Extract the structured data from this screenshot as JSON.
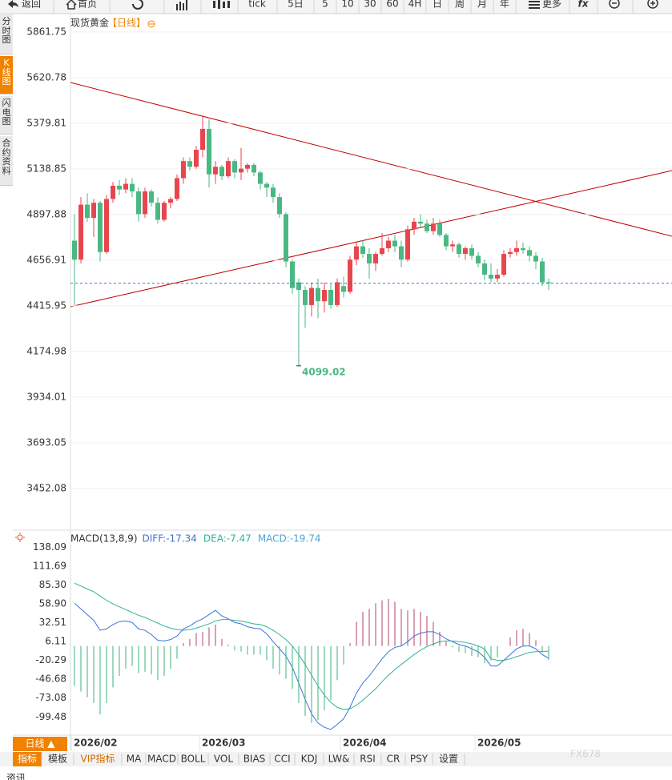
{
  "toolbar": {
    "back": "返回",
    "home": "首页",
    "tick": "tick",
    "periods": [
      "5日",
      "5",
      "10",
      "30",
      "60",
      "4H",
      "日",
      "周",
      "月",
      "年"
    ],
    "more": "更多"
  },
  "sidebar": [
    "分时图",
    "K线图",
    "闪电图",
    "合约资料"
  ],
  "chart_data": [
    {
      "type": "candlestick",
      "title": "现货黄金",
      "subtitle": "【日线】",
      "annotation": "4099.02",
      "categories": [
        "2026/02",
        null,
        null,
        null,
        null,
        null,
        null,
        null,
        null,
        null,
        null,
        null,
        null,
        null,
        null,
        null,
        null,
        null,
        null,
        null,
        "2026/03",
        null,
        null,
        null,
        null,
        null,
        null,
        null,
        null,
        null,
        null,
        null,
        null,
        null,
        null,
        null,
        null,
        null,
        null,
        null,
        null,
        null,
        "2026/04",
        null,
        null,
        null,
        null,
        null,
        null,
        null,
        null,
        null,
        null,
        null,
        null,
        null,
        null,
        null,
        null,
        null,
        null,
        null,
        null,
        "2026/05",
        null,
        null,
        null,
        null,
        null,
        null,
        null,
        null,
        null,
        null,
        null
      ],
      "open": [
        4760,
        4660,
        4950,
        4880,
        4960,
        4700,
        4980,
        5050,
        5030,
        5060,
        5020,
        4900,
        5020,
        4960,
        4870,
        4960,
        4980,
        5090,
        5180,
        5150,
        5240,
        5350,
        5110,
        5150,
        5100,
        5180,
        5120,
        5140,
        5160,
        5120,
        5060,
        5040,
        4990,
        4900,
        4650,
        4540,
        4500,
        4420,
        4510,
        4440,
        4500,
        4420,
        4520,
        4490,
        4660,
        4730,
        4690,
        4640,
        4690,
        4720,
        4760,
        4730,
        4660,
        4820,
        4860,
        4850,
        4810,
        4850,
        4790,
        4730,
        4740,
        4690,
        4720,
        4680,
        4640,
        4580,
        4560,
        4580,
        4690,
        4700,
        4720,
        4710,
        4680,
        4650,
        4540
      ],
      "high": [
        4900,
        4990,
        5010,
        4980,
        4970,
        5000,
        5070,
        5080,
        5090,
        5090,
        5040,
        5040,
        5030,
        4990,
        4970,
        4990,
        5110,
        5200,
        5200,
        5260,
        5420,
        5400,
        5180,
        5160,
        5200,
        5190,
        5250,
        5170,
        5170,
        5130,
        5070,
        5060,
        5010,
        4910,
        4660,
        4560,
        4520,
        4540,
        4560,
        4540,
        4530,
        4560,
        4570,
        4680,
        4750,
        4760,
        4720,
        4700,
        4800,
        4780,
        4790,
        4760,
        4840,
        4880,
        4900,
        4870,
        4880,
        4870,
        4800,
        4760,
        4750,
        4730,
        4740,
        4700,
        4660,
        4640,
        4610,
        4710,
        4720,
        4760,
        4750,
        4730,
        4700,
        4670,
        4560
      ],
      "low": [
        4420,
        4640,
        4860,
        4780,
        4650,
        4690,
        4960,
        5000,
        5010,
        4990,
        4860,
        4880,
        4940,
        4850,
        4860,
        4930,
        4970,
        5060,
        5130,
        5140,
        5200,
        5040,
        5060,
        5080,
        5090,
        5090,
        5080,
        5120,
        5100,
        5030,
        4990,
        4960,
        4880,
        4620,
        4480,
        4099.02,
        4300,
        4360,
        4350,
        4380,
        4400,
        4410,
        4460,
        4480,
        4630,
        4670,
        4560,
        4600,
        4680,
        4700,
        4700,
        4620,
        4650,
        4790,
        4830,
        4800,
        4790,
        4780,
        4710,
        4700,
        4670,
        4660,
        4660,
        4620,
        4550,
        4540,
        4540,
        4570,
        4670,
        4680,
        4690,
        4650,
        4610,
        4520,
        4500
      ],
      "close": [
        4660,
        4950,
        4880,
        4960,
        4700,
        4980,
        5050,
        5030,
        5060,
        5020,
        4900,
        5020,
        4960,
        4870,
        4960,
        4980,
        5090,
        5180,
        5150,
        5240,
        5350,
        5110,
        5150,
        5100,
        5180,
        5120,
        5140,
        5160,
        5120,
        5060,
        5040,
        4990,
        4900,
        4650,
        4510,
        4500,
        4420,
        4510,
        4440,
        4500,
        4420,
        4540,
        4490,
        4660,
        4730,
        4690,
        4640,
        4690,
        4720,
        4760,
        4730,
        4660,
        4820,
        4860,
        4850,
        4810,
        4850,
        4790,
        4730,
        4740,
        4690,
        4720,
        4680,
        4640,
        4580,
        4560,
        4580,
        4690,
        4700,
        4720,
        4710,
        4680,
        4650,
        4540,
        4535
      ],
      "up_color": "#e8464e",
      "down_color": "#49b883",
      "ylim": [
        3240,
        5946
      ],
      "yticks": [
        5861.75,
        5620.78,
        5379.81,
        5138.85,
        4897.88,
        4656.91,
        4415.95,
        4174.98,
        3934.01,
        3693.05,
        3452.08
      ],
      "grid": true
    },
    {
      "type": "macd",
      "title": "MACD(13,8,9)",
      "series": [
        {
          "label": "DIFF:-17.34",
          "kind": "line",
          "color": "#3b73d9",
          "values": [
            60,
            52,
            44,
            36,
            22,
            24,
            30,
            34,
            35,
            33,
            24,
            22,
            16,
            8,
            7,
            9,
            14,
            24,
            28,
            34,
            38,
            44,
            50,
            42,
            38,
            33,
            31,
            27,
            25,
            24,
            17,
            6,
            -4,
            -14,
            -30,
            -52,
            -75,
            -95,
            -108,
            -114,
            -117,
            -110,
            -102,
            -86,
            -66,
            -52,
            -42,
            -30,
            -18,
            -8,
            -2,
            0,
            6,
            14,
            18,
            20,
            20,
            16,
            10,
            6,
            2,
            0,
            -4,
            -8,
            -16,
            -28,
            -28,
            -20,
            -12,
            -4,
            0,
            0,
            -4,
            -12,
            -17.34
          ]
        },
        {
          "label": "DEA:-7.47",
          "kind": "line",
          "color": "#2fb39a",
          "values": [
            88,
            84,
            80,
            76,
            70,
            64,
            59,
            55,
            51,
            47,
            43,
            40,
            36,
            32,
            28,
            25,
            23,
            22,
            23,
            25,
            28,
            31,
            35,
            37,
            37,
            36,
            35,
            33,
            31,
            30,
            27,
            22,
            16,
            9,
            0,
            -12,
            -26,
            -41,
            -56,
            -69,
            -79,
            -86,
            -89,
            -88,
            -83,
            -76,
            -68,
            -60,
            -50,
            -41,
            -33,
            -26,
            -19,
            -12,
            -6,
            -1,
            3,
            6,
            7,
            7,
            6,
            5,
            3,
            0,
            -4,
            -18,
            -20,
            -20,
            -18,
            -15,
            -12,
            -9,
            -8,
            -7.5,
            -7.47
          ]
        },
        {
          "label": "MACD:-19.74",
          "kind": "bar",
          "color": "#4aa6d8",
          "up_color": "#b5426e",
          "down_color": "#3cb37a",
          "values": [
            -56,
            -64,
            -72,
            -80,
            -96,
            -80,
            -58,
            -42,
            -32,
            -28,
            -38,
            -36,
            -40,
            -48,
            -42,
            -32,
            -18,
            4,
            10,
            18,
            20,
            26,
            30,
            10,
            2,
            -6,
            -8,
            -12,
            -12,
            -12,
            -20,
            -32,
            -40,
            -46,
            -60,
            -80,
            -98,
            -108,
            -104,
            -90,
            -76,
            -48,
            -26,
            4,
            34,
            48,
            52,
            60,
            64,
            66,
            62,
            52,
            50,
            52,
            48,
            42,
            34,
            20,
            6,
            -2,
            -8,
            -10,
            -14,
            -16,
            -24,
            -20,
            -16,
            0,
            12,
            22,
            24,
            18,
            8,
            -9,
            -19.74
          ]
        }
      ],
      "ylim": [
        -125,
        159
      ],
      "yticks": [
        138.09,
        111.69,
        {
          "value": 85.3,
          "label": "85.30"
        },
        {
          "value": 58.9,
          "label": "58.90"
        },
        32.51,
        6.11,
        -20.29,
        -46.68,
        -73.08,
        -99.48
      ]
    }
  ],
  "bottom_bar": {
    "period": "日线 ▲",
    "tabs": [
      "指标",
      "模板",
      "VIP指标",
      "MA",
      "MACD",
      "BOLL",
      "VOL",
      "BIAS",
      "CCI",
      "KDJ",
      "LW&",
      "RSI",
      "CR",
      "PSY",
      "设置"
    ],
    "footer": "资讯"
  },
  "watermark": "FX678"
}
